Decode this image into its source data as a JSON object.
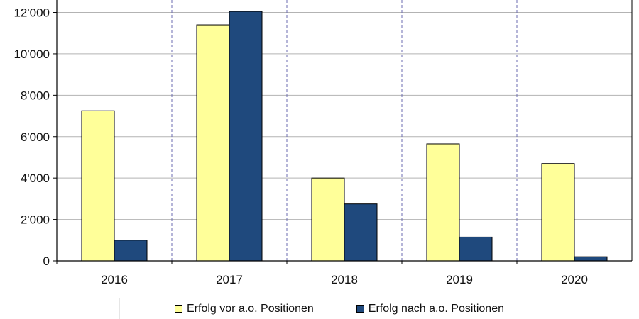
{
  "chart_data": {
    "type": "bar",
    "categories": [
      "2016",
      "2017",
      "2018",
      "2019",
      "2020"
    ],
    "series": [
      {
        "name": "Erfolg vor a.o. Positionen",
        "values": [
          7250,
          11400,
          4000,
          5650,
          4700
        ],
        "color": "#FFFF99"
      },
      {
        "name": "Erfolg nach a.o. Positionen",
        "values": [
          1000,
          12050,
          2750,
          1150,
          200
        ],
        "color": "#1F497D"
      }
    ],
    "y_ticks": [
      "0",
      "2'000",
      "4'000",
      "6'000",
      "8'000",
      "10'000",
      "12'000"
    ],
    "ylim": [
      0,
      12600
    ],
    "y_grid": true,
    "x_grid": "dashed",
    "legend_position": "bottom"
  }
}
